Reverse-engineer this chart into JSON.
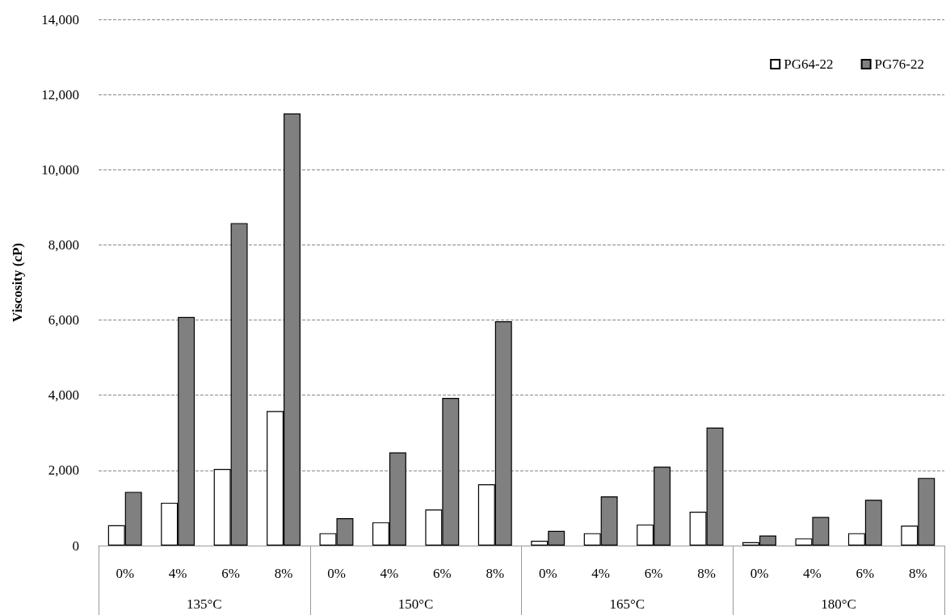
{
  "chart_data": {
    "type": "bar",
    "ylabel": "Viscosity (cP)",
    "categories": [
      "0%",
      "4%",
      "6%",
      "8%",
      "0%",
      "4%",
      "6%",
      "8%",
      "0%",
      "4%",
      "6%",
      "8%",
      "0%",
      "4%",
      "6%",
      "8%"
    ],
    "annotations": [
      "135°C",
      "150°C",
      "165°C",
      "180°C"
    ],
    "series": [
      {
        "name": "PG64-22",
        "color": "#ffffff",
        "values": [
          540,
          1140,
          2040,
          3580,
          330,
          620,
          960,
          1630,
          130,
          330,
          560,
          900,
          90,
          190,
          330,
          530
        ]
      },
      {
        "name": "PG76-22",
        "color": "#808080",
        "values": [
          1430,
          6080,
          8580,
          11500,
          730,
          2480,
          3930,
          5970,
          390,
          1310,
          2100,
          3140,
          270,
          760,
          1220,
          1800
        ]
      }
    ],
    "ylim": [
      0,
      14000
    ],
    "yticks": [
      0,
      {
        "value": 2000,
        "label": "2,000"
      },
      {
        "value": 4000,
        "label": "4,000"
      },
      {
        "value": 6000,
        "label": "6,000"
      },
      {
        "value": 8000,
        "label": "8,000"
      },
      {
        "value": 10000,
        "label": "10,000"
      },
      {
        "value": 12000,
        "label": "12,000"
      },
      {
        "value": 14000,
        "label": "14,000"
      }
    ],
    "grid": "y",
    "legend": "top right"
  }
}
